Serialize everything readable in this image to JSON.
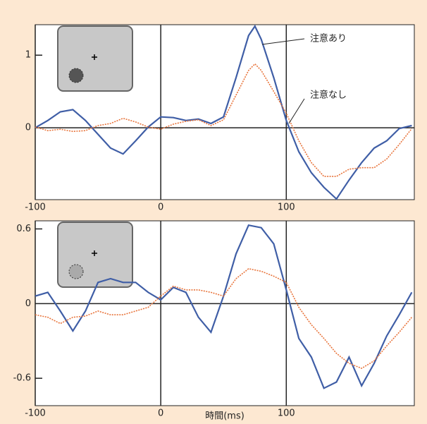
{
  "chart_data": [
    {
      "type": "line",
      "x": [
        -100,
        -90,
        -80,
        -70,
        -60,
        -50,
        -40,
        -30,
        -20,
        -10,
        0,
        10,
        20,
        30,
        40,
        50,
        60,
        70,
        75,
        80,
        90,
        100,
        110,
        120,
        130,
        140,
        150,
        160,
        170,
        180,
        190,
        200
      ],
      "series": [
        {
          "name": "注意あり",
          "color": "#3f5ea6",
          "values": [
            0,
            0.1,
            0.22,
            0.25,
            0.1,
            -0.09,
            -0.28,
            -0.36,
            -0.18,
            0.01,
            0.15,
            0.14,
            0.1,
            0.12,
            0.06,
            0.15,
            0.69,
            1.27,
            1.4,
            1.22,
            0.69,
            0.1,
            -0.33,
            -0.62,
            -0.82,
            -0.98,
            -0.72,
            -0.48,
            -0.28,
            -0.18,
            -0.01,
            0.03
          ]
        },
        {
          "name": "注意なし",
          "color": "#e8743b",
          "values": [
            0.01,
            -0.04,
            -0.02,
            -0.05,
            -0.04,
            0.03,
            0.06,
            0.13,
            0.08,
            0.01,
            -0.02,
            0.05,
            0.09,
            0.11,
            0.03,
            0.11,
            0.45,
            0.79,
            0.88,
            0.79,
            0.5,
            0.2,
            -0.18,
            -0.48,
            -0.67,
            -0.67,
            -0.57,
            -0.55,
            -0.55,
            -0.43,
            -0.23,
            -0.01
          ]
        }
      ],
      "xlim": [
        -100,
        202
      ],
      "ylim": [
        -0.99,
        1.42
      ],
      "xticks": [
        -100,
        0,
        100
      ],
      "yticks": [
        0,
        1
      ]
    },
    {
      "type": "line",
      "x_label": "時間(ms)",
      "x": [
        -100,
        -90,
        -80,
        -70,
        -60,
        -50,
        -40,
        -30,
        -20,
        -10,
        0,
        10,
        20,
        30,
        40,
        50,
        60,
        70,
        80,
        90,
        100,
        110,
        120,
        130,
        140,
        150,
        160,
        170,
        180,
        190,
        200
      ],
      "series": [
        {
          "color": "#3f5ea6",
          "values": [
            0.06,
            0.09,
            -0.06,
            -0.22,
            -0.06,
            0.17,
            0.2,
            0.17,
            0.17,
            0.09,
            0.03,
            0.13,
            0.09,
            -0.11,
            -0.23,
            0.06,
            0.4,
            0.63,
            0.61,
            0.48,
            0.11,
            -0.28,
            -0.43,
            -0.68,
            -0.63,
            -0.43,
            -0.66,
            -0.48,
            -0.26,
            -0.09,
            0.09
          ]
        },
        {
          "color": "#e8743b",
          "values": [
            -0.09,
            -0.11,
            -0.16,
            -0.11,
            -0.1,
            -0.06,
            -0.09,
            -0.09,
            -0.06,
            -0.03,
            0.06,
            0.14,
            0.11,
            0.11,
            0.09,
            0.06,
            0.2,
            0.28,
            0.26,
            0.22,
            0.17,
            -0.03,
            -0.17,
            -0.28,
            -0.4,
            -0.48,
            -0.52,
            -0.46,
            -0.34,
            -0.23,
            -0.11
          ]
        }
      ],
      "xlim": [
        -100,
        202
      ],
      "ylim": [
        -0.82,
        0.665
      ],
      "xticks": [
        -100,
        0,
        100
      ],
      "yticks": [
        -0.6,
        0,
        0.6
      ]
    }
  ]
}
